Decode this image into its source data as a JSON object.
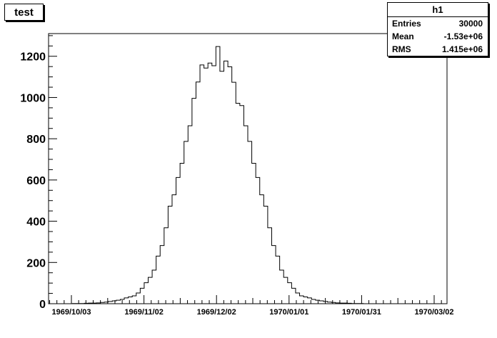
{
  "chart_data": {
    "type": "histogram",
    "title": "test",
    "x_ticks": [
      "1969/10/03",
      "1969/11/02",
      "1969/12/02",
      "1970/01/01",
      "1970/01/31",
      "1970/03/02"
    ],
    "y_ticks": [
      0,
      200,
      400,
      600,
      800,
      1000,
      1200
    ],
    "ylim": [
      0,
      1310
    ],
    "grid": false,
    "bins": 100,
    "values": [
      0,
      0,
      0,
      0,
      0,
      0,
      1,
      1,
      1,
      2,
      3,
      3,
      4,
      6,
      8,
      11,
      14,
      17,
      21,
      28,
      33,
      38,
      52,
      75,
      102,
      128,
      163,
      231,
      282,
      368,
      473,
      528,
      612,
      681,
      787,
      863,
      996,
      1075,
      1158,
      1143,
      1167,
      1154,
      1247,
      1127,
      1177,
      1149,
      1074,
      972,
      961,
      863,
      787,
      681,
      612,
      528,
      473,
      368,
      282,
      231,
      163,
      128,
      102,
      75,
      52,
      38,
      33,
      28,
      21,
      17,
      14,
      11,
      8,
      6,
      4,
      3,
      3,
      2,
      1,
      1,
      1,
      0,
      0,
      0,
      0,
      0,
      0,
      0,
      0,
      0,
      0,
      0,
      0,
      0,
      0,
      0,
      0,
      0,
      0,
      0,
      0,
      0
    ],
    "stats": {
      "name": "h1",
      "rows": [
        {
          "label": "Entries",
          "value": "30000"
        },
        {
          "label": "Mean",
          "value": "-1.53e+06"
        },
        {
          "label": "RMS",
          "value": "1.415e+06"
        }
      ]
    }
  },
  "colors": {
    "line": "#000000",
    "background": "#ffffff"
  }
}
